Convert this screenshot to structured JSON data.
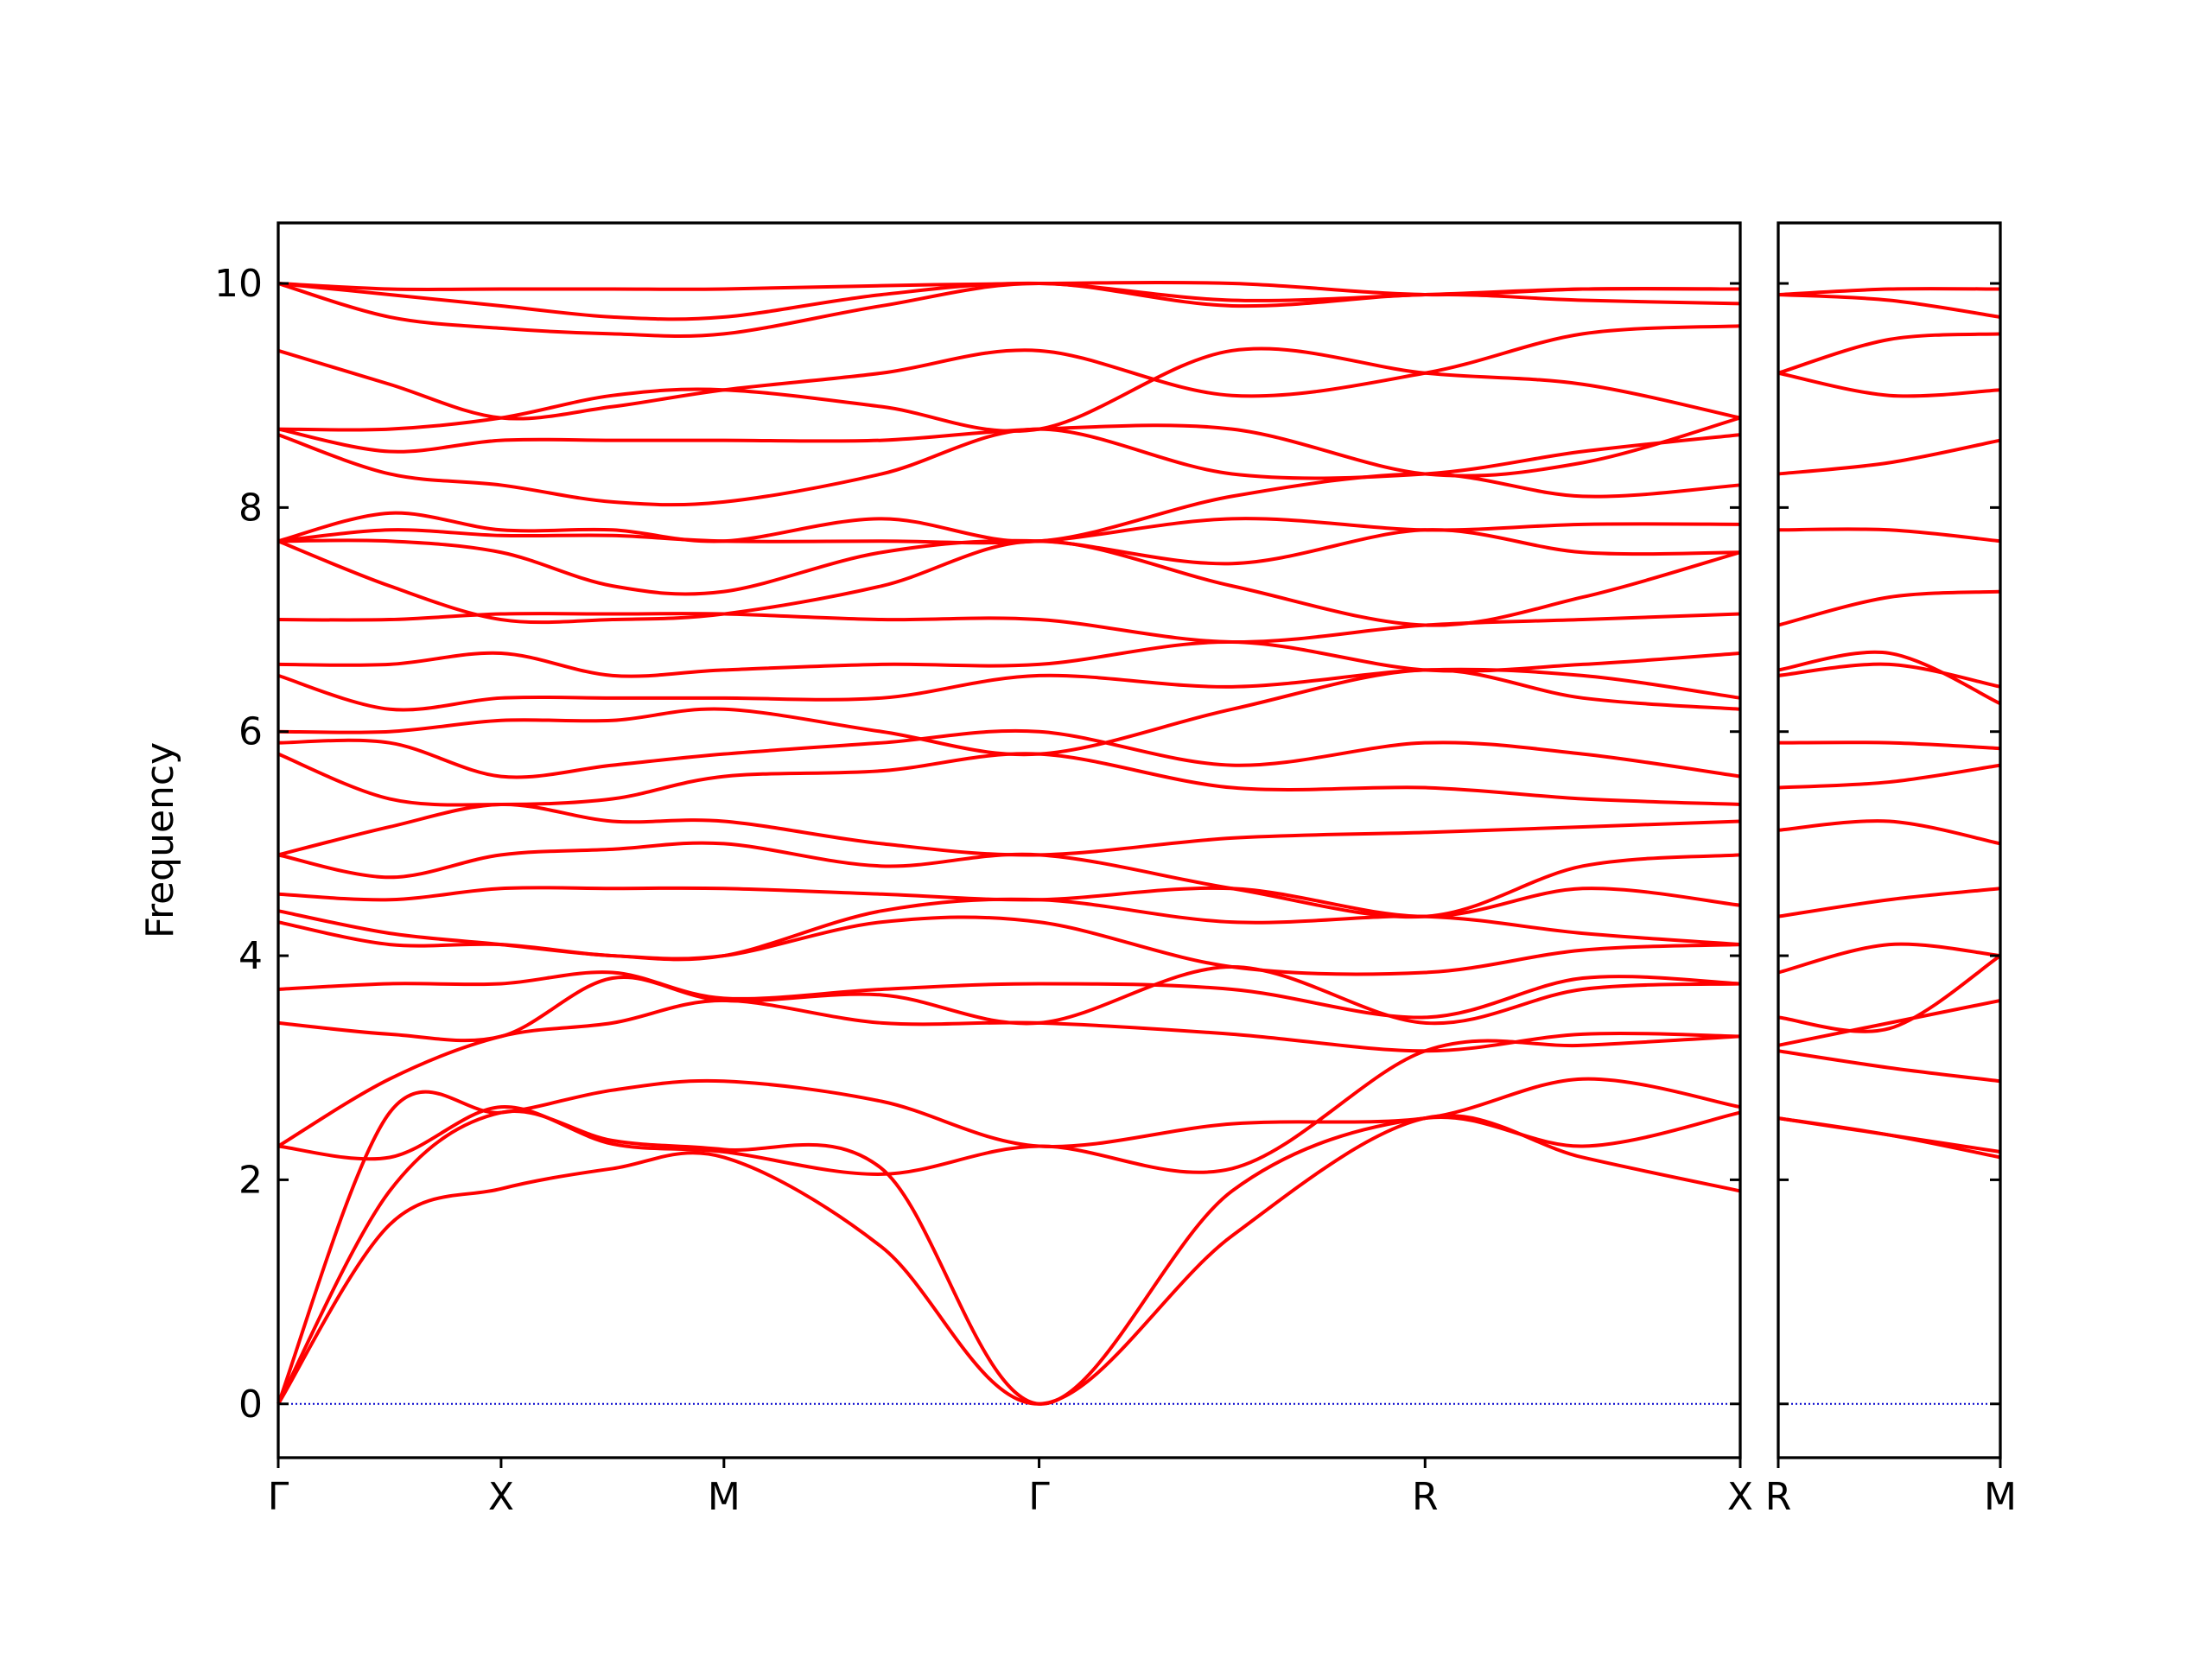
{
  "chart_data": [
    {
      "type": "line",
      "ylabel": "Frequency",
      "color": "#ff0000",
      "show_ytick_labels": true,
      "zero_line": 0,
      "zero_line_color": "#0000cc",
      "x": [
        0,
        0.25,
        0.5,
        0.75,
        1.0,
        1.354,
        1.7071,
        2.14,
        2.5731,
        2.9267,
        3.2802
      ],
      "xlim": [
        0,
        3.2802
      ],
      "xticks": [
        {
          "value": 0,
          "label": "Γ"
        },
        {
          "value": 0.5,
          "label": "X"
        },
        {
          "value": 1.0,
          "label": "M"
        },
        {
          "value": 1.7071,
          "label": "Γ"
        },
        {
          "value": 2.5731,
          "label": "R"
        },
        {
          "value": 3.2802,
          "label": "X"
        }
      ],
      "ylim": [
        -0.48,
        10.54
      ],
      "yticks": [
        0,
        2,
        4,
        6,
        8,
        10
      ],
      "series": [
        {
          "values": [
            0,
            1.6,
            1.92,
            2.1,
            2.2,
            1.4,
            0,
            1.5,
            2.55,
            2.2,
            1.9
          ]
        },
        {
          "values": [
            0,
            1.9,
            2.6,
            2.35,
            2.27,
            2.1,
            0,
            1.9,
            2.55,
            2.3,
            2.6
          ]
        },
        {
          "values": [
            0,
            2.6,
            2.6,
            2.8,
            2.88,
            2.7,
            2.3,
            2.5,
            2.55,
            2.9,
            2.65
          ]
        },
        {
          "values": [
            2.3,
            2.2,
            2.65,
            2.32,
            2.25,
            2.05,
            2.3,
            2.1,
            3.15,
            3.2,
            3.28
          ]
        },
        {
          "values": [
            2.3,
            2.9,
            3.28,
            3.4,
            3.6,
            3.4,
            3.4,
            3.3,
            3.15,
            3.3,
            3.28
          ]
        },
        {
          "values": [
            3.4,
            3.3,
            3.28,
            3.8,
            3.6,
            3.65,
            3.4,
            3.9,
            3.4,
            3.7,
            3.75
          ]
        },
        {
          "values": [
            3.7,
            3.75,
            3.75,
            3.85,
            3.62,
            3.7,
            3.75,
            3.7,
            3.45,
            3.8,
            3.75
          ]
        },
        {
          "values": [
            4.3,
            4.1,
            4.1,
            4.0,
            4.0,
            4.3,
            4.3,
            3.9,
            3.85,
            4.05,
            4.1
          ]
        },
        {
          "values": [
            4.4,
            4.2,
            4.1,
            4.0,
            4.0,
            4.4,
            4.5,
            4.3,
            4.35,
            4.2,
            4.1
          ]
        },
        {
          "values": [
            4.55,
            4.5,
            4.6,
            4.6,
            4.6,
            4.55,
            4.5,
            4.6,
            4.35,
            4.6,
            4.45
          ]
        },
        {
          "values": [
            4.9,
            4.7,
            4.9,
            4.95,
            5.0,
            4.8,
            4.9,
            4.6,
            4.35,
            4.8,
            4.9
          ]
        },
        {
          "values": [
            4.9,
            5.15,
            5.35,
            5.2,
            5.2,
            5.0,
            4.9,
            5.05,
            5.1,
            5.15,
            5.2
          ]
        },
        {
          "values": [
            5.8,
            5.4,
            5.35,
            5.4,
            5.6,
            5.65,
            5.8,
            5.5,
            5.5,
            5.4,
            5.35
          ]
        },
        {
          "values": [
            5.9,
            5.9,
            5.6,
            5.7,
            5.8,
            5.9,
            6.0,
            5.7,
            5.9,
            5.8,
            5.6
          ]
        },
        {
          "values": [
            6.0,
            6.0,
            6.1,
            6.1,
            6.2,
            6.0,
            5.8,
            6.2,
            6.55,
            6.3,
            6.2
          ]
        },
        {
          "values": [
            6.5,
            6.2,
            6.3,
            6.3,
            6.3,
            6.3,
            6.5,
            6.4,
            6.55,
            6.5,
            6.3
          ]
        },
        {
          "values": [
            6.6,
            6.6,
            6.7,
            6.5,
            6.55,
            6.6,
            6.6,
            6.8,
            6.55,
            6.6,
            6.7
          ]
        },
        {
          "values": [
            7.0,
            7.0,
            7.05,
            7.05,
            7.05,
            7.0,
            7.0,
            6.8,
            6.95,
            7.0,
            7.05
          ]
        },
        {
          "values": [
            7.7,
            7.3,
            7.0,
            7.0,
            7.05,
            7.3,
            7.7,
            7.3,
            6.95,
            7.2,
            7.6
          ]
        },
        {
          "values": [
            7.7,
            7.7,
            7.6,
            7.3,
            7.25,
            7.6,
            7.7,
            7.5,
            7.8,
            7.6,
            7.6
          ]
        },
        {
          "values": [
            7.7,
            7.8,
            7.75,
            7.75,
            7.7,
            7.7,
            7.7,
            7.9,
            7.8,
            7.85,
            7.85
          ]
        },
        {
          "values": [
            7.7,
            7.95,
            7.8,
            7.8,
            7.7,
            7.9,
            7.7,
            8.1,
            8.3,
            8.1,
            8.2
          ]
        },
        {
          "values": [
            8.65,
            8.3,
            8.2,
            8.05,
            8.05,
            8.3,
            8.7,
            8.3,
            8.3,
            8.5,
            8.65
          ]
        },
        {
          "values": [
            8.7,
            8.5,
            8.6,
            8.6,
            8.6,
            8.6,
            8.7,
            8.7,
            8.3,
            8.4,
            8.8
          ]
        },
        {
          "values": [
            8.7,
            8.7,
            8.8,
            9.0,
            9.05,
            8.9,
            8.7,
            9.4,
            9.2,
            9.1,
            8.8
          ]
        },
        {
          "values": [
            9.4,
            9.1,
            8.8,
            8.9,
            9.05,
            9.2,
            9.4,
            9.0,
            9.2,
            9.55,
            9.62
          ]
        },
        {
          "values": [
            10.0,
            9.7,
            9.6,
            9.55,
            9.55,
            9.8,
            10.0,
            9.8,
            9.9,
            9.85,
            9.82
          ]
        },
        {
          "values": [
            10.0,
            9.9,
            9.8,
            9.7,
            9.7,
            9.9,
            10.0,
            9.85,
            9.9,
            9.95,
            9.95
          ]
        },
        {
          "values": [
            10.0,
            9.95,
            9.95,
            9.95,
            9.95,
            9.98,
            10.0,
            10.0,
            9.9,
            9.95,
            9.95
          ]
        }
      ]
    },
    {
      "type": "line",
      "color": "#ff0000",
      "show_ytick_labels": false,
      "zero_line": 0,
      "zero_line_color": "#0000cc",
      "x": [
        0,
        0.25,
        0.5
      ],
      "xlim": [
        0,
        0.5
      ],
      "xticks": [
        {
          "value": 0,
          "label": "R"
        },
        {
          "value": 0.5,
          "label": "M"
        }
      ],
      "ylim": [
        -0.48,
        10.54
      ],
      "yticks": [
        0,
        2,
        4,
        6,
        8,
        10
      ],
      "series": [
        {
          "values": [
            2.55,
            2.4,
            2.2
          ]
        },
        {
          "values": [
            2.55,
            2.4,
            2.25
          ]
        },
        {
          "values": [
            3.15,
            3.0,
            2.88
          ]
        },
        {
          "values": [
            3.2,
            3.4,
            3.6
          ]
        },
        {
          "values": [
            3.45,
            3.35,
            4.0
          ]
        },
        {
          "values": [
            3.85,
            4.1,
            4.0
          ]
        },
        {
          "values": [
            4.35,
            4.5,
            4.6
          ]
        },
        {
          "values": [
            5.12,
            5.2,
            5.0
          ]
        },
        {
          "values": [
            5.5,
            5.55,
            5.7
          ]
        },
        {
          "values": [
            5.9,
            5.9,
            5.85
          ]
        },
        {
          "values": [
            6.5,
            6.6,
            6.4
          ]
        },
        {
          "values": [
            6.55,
            6.7,
            6.25
          ]
        },
        {
          "values": [
            6.95,
            7.2,
            7.25
          ]
        },
        {
          "values": [
            7.8,
            7.8,
            7.7
          ]
        },
        {
          "values": [
            8.3,
            8.4,
            8.6
          ]
        },
        {
          "values": [
            9.2,
            9.0,
            9.05
          ]
        },
        {
          "values": [
            9.2,
            9.5,
            9.55
          ]
        },
        {
          "values": [
            9.9,
            9.85,
            9.7
          ]
        },
        {
          "values": [
            9.9,
            9.95,
            9.95
          ]
        }
      ]
    }
  ]
}
